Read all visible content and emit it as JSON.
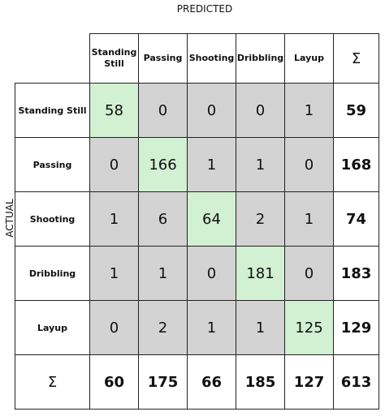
{
  "chart_data": {
    "type": "table",
    "title": "",
    "xlabel": "PREDICTED",
    "ylabel": "ACTUAL",
    "sum_symbol": "Σ",
    "columns": [
      "Standing Still",
      "Passing",
      "Shooting",
      "Dribbling",
      "Layup"
    ],
    "rows": [
      {
        "label": "Standing Still",
        "values": [
          "58",
          "0",
          "0",
          "0",
          "1"
        ],
        "total": "59"
      },
      {
        "label": "Passing",
        "values": [
          "0",
          "166",
          "1",
          "1",
          "0"
        ],
        "total": "168"
      },
      {
        "label": "Shooting",
        "values": [
          "1",
          "6",
          "64",
          "2",
          "1"
        ],
        "total": "74"
      },
      {
        "label": "Dribbling",
        "values": [
          "1",
          "1",
          "0",
          "181",
          "0"
        ],
        "total": "183"
      },
      {
        "label": "Layup",
        "values": [
          "0",
          "2",
          "1",
          "1",
          "125"
        ],
        "total": "129"
      }
    ],
    "column_totals": [
      "60",
      "175",
      "66",
      "185",
      "127"
    ],
    "grand_total": "613",
    "colors": {
      "diagonal": "#d2f0d2",
      "off_diagonal": "#d3d3d3"
    }
  }
}
